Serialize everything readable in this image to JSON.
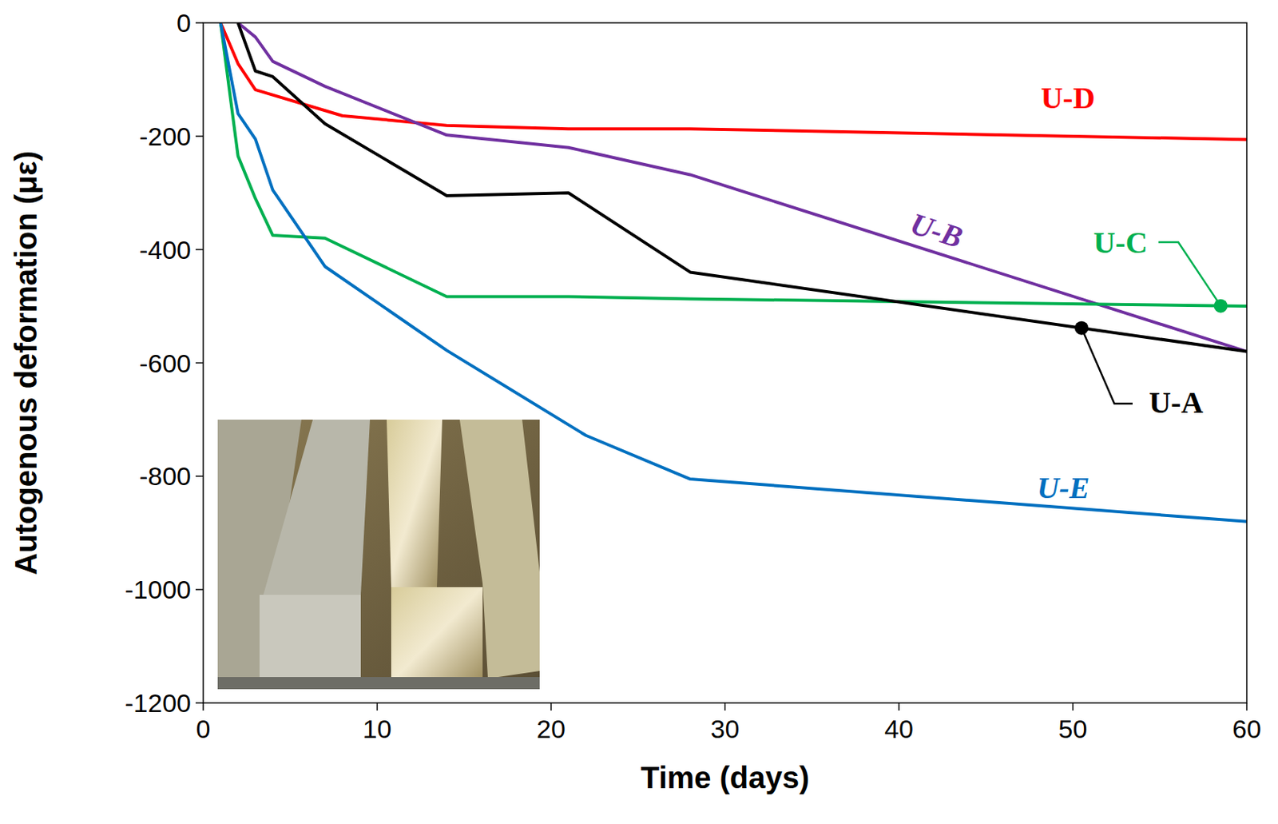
{
  "chart_data": {
    "type": "line",
    "x_label": "Time (days)",
    "y_label": "Autogenous deformation (με)",
    "xlim": [
      0,
      60
    ],
    "xticks": [
      0,
      10,
      20,
      30,
      40,
      50,
      60
    ],
    "ylim": [
      -1200,
      0
    ],
    "yticks": [
      -1200,
      -1000,
      -800,
      -600,
      -400,
      -200,
      0
    ],
    "series": [
      {
        "name": "U-D",
        "color": "#ff0000",
        "x": [
          1,
          2,
          3,
          8,
          14,
          21,
          28,
          60
        ],
        "values": [
          0,
          -72,
          -118,
          -164,
          -181,
          -187,
          -187,
          -206
        ]
      },
      {
        "name": "U-B",
        "color": "#7030a0",
        "x": [
          2,
          3,
          4,
          7,
          14,
          21,
          28,
          60
        ],
        "values": [
          0,
          -25,
          -68,
          -112,
          -198,
          -220,
          -268,
          -580
        ]
      },
      {
        "name": "U-C",
        "color": "#00b050",
        "x": [
          1,
          2,
          3,
          4,
          7,
          14,
          21,
          28,
          60
        ],
        "values": [
          0,
          -235,
          -310,
          -375,
          -380,
          -483,
          -483,
          -487,
          -500
        ]
      },
      {
        "name": "U-A",
        "color": "#000000",
        "x": [
          2,
          3,
          4,
          7,
          14,
          21,
          28,
          60
        ],
        "values": [
          0,
          -85,
          -95,
          -178,
          -305,
          -300,
          -440,
          -580
        ]
      },
      {
        "name": "U-E",
        "color": "#0070c0",
        "x": [
          1,
          2,
          3,
          4,
          7,
          14,
          22,
          28,
          60
        ],
        "values": [
          0,
          -160,
          -205,
          -295,
          -430,
          -578,
          -728,
          -805,
          -880
        ]
      }
    ]
  }
}
